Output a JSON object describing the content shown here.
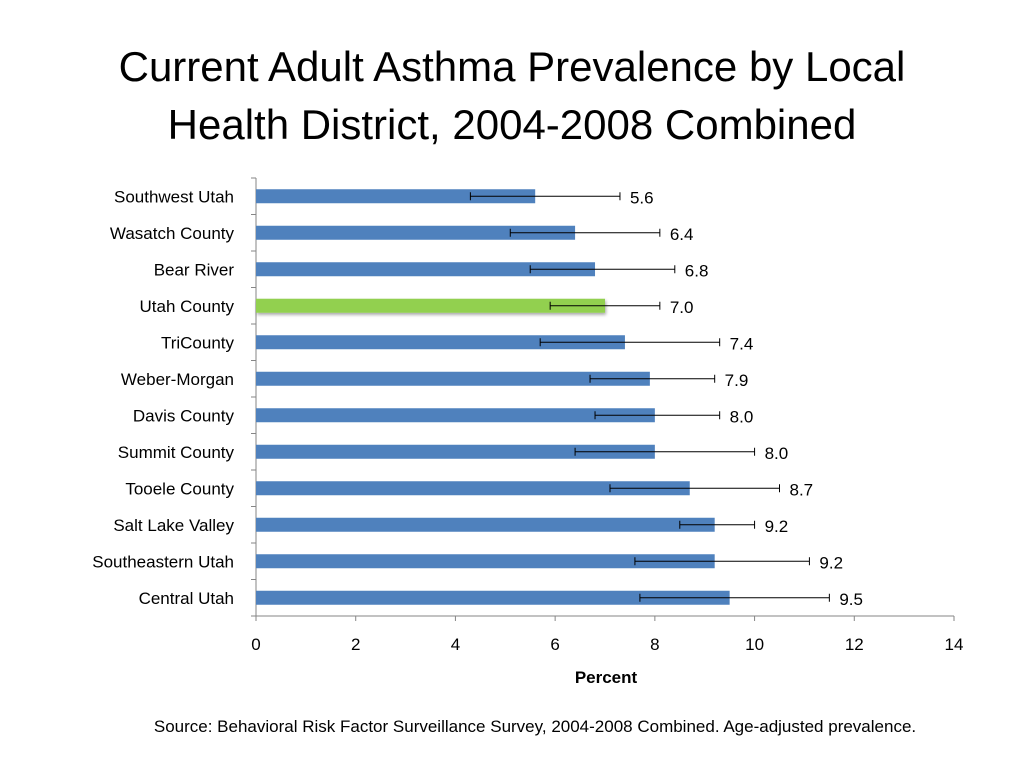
{
  "slide": {
    "title_line1": "Current Adult Asthma Prevalence by Local",
    "title_line2": "Health District, 2004-2008 Combined",
    "source": "Source: Behavioral Risk Factor Surveillance Survey, 2004-2008 Combined. Age-adjusted prevalence."
  },
  "chart_data": {
    "type": "bar",
    "orientation": "horizontal",
    "title": "",
    "xlabel": "Percent",
    "ylabel": "",
    "xlim": [
      0,
      14
    ],
    "xticks": [
      0,
      2,
      4,
      6,
      8,
      10,
      12,
      14
    ],
    "grid": false,
    "legend": "none",
    "categories": [
      "Southwest Utah",
      "Wasatch County",
      "Bear River",
      "Utah County",
      "TriCounty",
      "Weber-Morgan",
      "Davis County",
      "Summit County",
      "Tooele County",
      "Salt Lake Valley",
      "Southeastern Utah",
      "Central Utah"
    ],
    "values": [
      5.6,
      6.4,
      6.8,
      7.0,
      7.4,
      7.9,
      8.0,
      8.0,
      8.7,
      9.2,
      9.2,
      9.5
    ],
    "value_labels": [
      "5.6",
      "6.4",
      "6.8",
      "7.0",
      "7.4",
      "7.9",
      "8.0",
      "8.0",
      "8.7",
      "9.2",
      "9.2",
      "9.5"
    ],
    "error_low": [
      4.3,
      5.1,
      5.5,
      5.9,
      5.7,
      6.7,
      6.8,
      6.4,
      7.1,
      8.5,
      7.6,
      7.7
    ],
    "error_high": [
      7.3,
      8.1,
      8.4,
      8.1,
      9.3,
      9.2,
      9.3,
      10.0,
      10.5,
      10.0,
      11.1,
      11.5
    ],
    "highlight_category": "Utah County",
    "colors": {
      "bar": "#4F81BD",
      "highlight": "#92D050",
      "error_bar": "#000000",
      "axis": "#868686"
    }
  }
}
